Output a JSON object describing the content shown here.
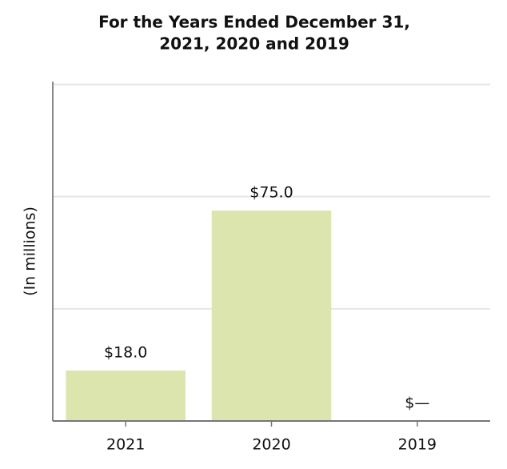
{
  "chart_data": {
    "type": "bar",
    "title": [
      "For the Years Ended December 31,",
      "2021, 2020 and 2019"
    ],
    "y_label": "(In millions)",
    "categories": [
      "2021",
      "2020",
      "2019"
    ],
    "values": [
      18,
      75,
      0
    ],
    "value_labels": [
      "$18.0",
      "$75.0",
      "$—"
    ],
    "color": "#dce5ae",
    "ylim": [
      0,
      121
    ],
    "yticks": [
      40,
      80,
      120
    ],
    "tick_labels": false,
    "grid": true
  }
}
